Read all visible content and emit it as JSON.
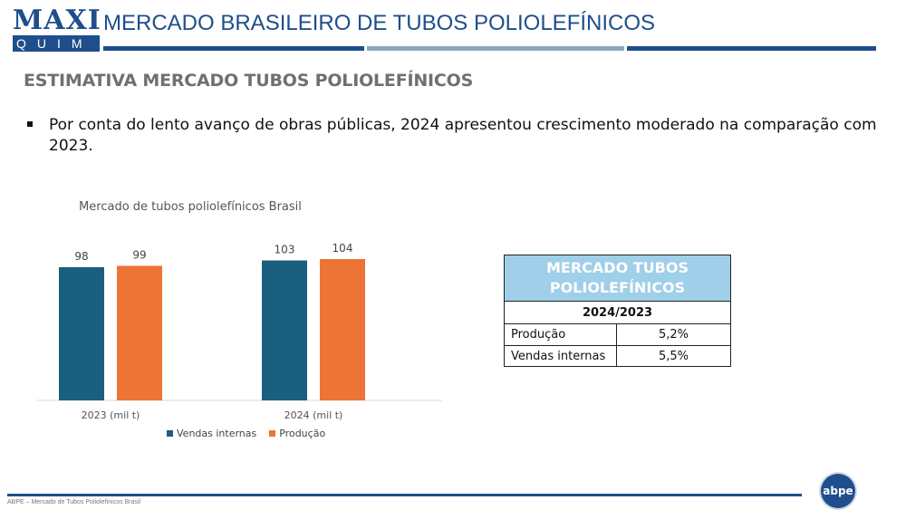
{
  "brand": {
    "logo_top": "MAXI",
    "logo_bottom": "QUIM",
    "accent_dark": "#1f4e8c",
    "accent_light": "#8ea7c0"
  },
  "header": {
    "title": "MERCADO BRASILEIRO DE TUBOS POLIOLEFÍNICOS"
  },
  "section": {
    "title": "ESTIMATIVA MERCADO TUBOS POLIOLEFÍNICOS"
  },
  "bullet": {
    "text": "Por conta do lento avanço de obras públicas, 2024 apresentou crescimento moderado na comparação com 2023."
  },
  "chart_data": {
    "type": "bar",
    "title": "Mercado de tubos poliolefínicos Brasil",
    "categories": [
      "2023 (mil t)",
      "2024 (mil t)"
    ],
    "series": [
      {
        "name": "Vendas internas",
        "values": [
          98,
          103
        ],
        "color": "#1b5f7e"
      },
      {
        "name": "Produção",
        "values": [
          99,
          104
        ],
        "color": "#ec7434"
      }
    ],
    "ylim": [
      0,
      120
    ],
    "grid": false,
    "legend": "bottom",
    "xlabel": "",
    "ylabel": ""
  },
  "table": {
    "header": "MERCADO TUBOS POLIOLEFÍNICOS",
    "period": "2024/2023",
    "rows": [
      {
        "label": "Produção",
        "value": "5,2%"
      },
      {
        "label": "Vendas internas",
        "value": "5,5%"
      }
    ]
  },
  "footer": {
    "text": "ABPE – Mercado de Tubos Poliolefínicos Brasil",
    "logo_text": "abpe"
  }
}
